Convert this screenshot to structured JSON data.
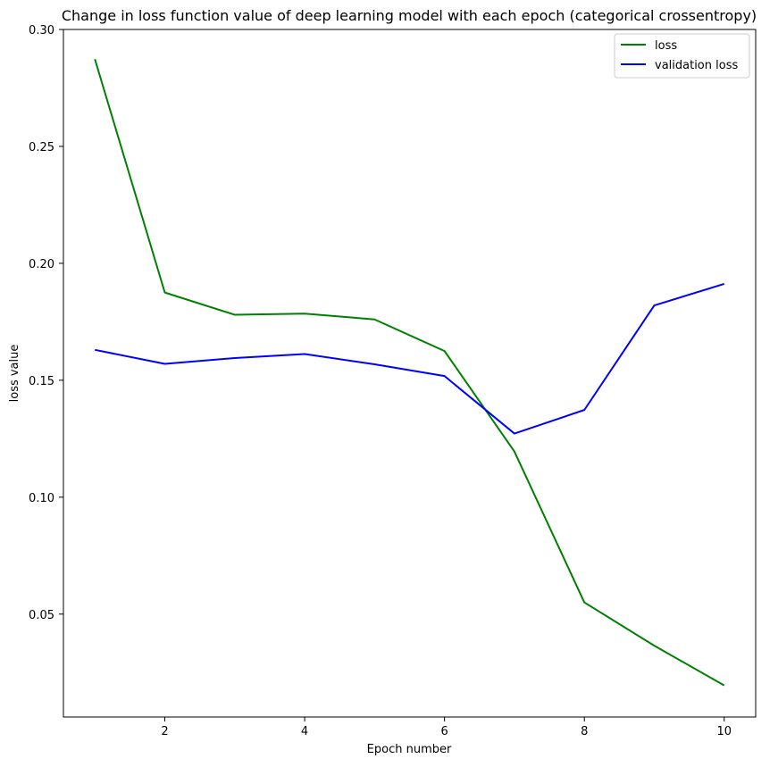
{
  "chart_data": {
    "type": "line",
    "title": "Change in loss function value of deep learning model with each epoch (categorical crossentropy)",
    "xlabel": "Epoch number",
    "ylabel": "loss value",
    "x": [
      1,
      2,
      3,
      4,
      5,
      6,
      7,
      8,
      9,
      10
    ],
    "xlim": [
      0.55,
      10.45
    ],
    "ylim": [
      0.006,
      0.3
    ],
    "xticks": [
      2,
      4,
      6,
      8,
      10
    ],
    "xtick_labels": [
      "2",
      "4",
      "6",
      "8",
      "10"
    ],
    "yticks": [
      0.05,
      0.1,
      0.15,
      0.2,
      0.25,
      0.3
    ],
    "ytick_labels": [
      "0.05",
      "0.10",
      "0.15",
      "0.20",
      "0.25",
      "0.30"
    ],
    "grid": false,
    "legend_position": "top-right",
    "series": [
      {
        "name": "loss",
        "color": "#008000",
        "values": [
          0.2873,
          0.1875,
          0.178,
          0.1785,
          0.176,
          0.1625,
          0.1195,
          0.055,
          0.0365,
          0.0195
        ]
      },
      {
        "name": "validation loss",
        "color": "#0000ff",
        "values": [
          0.163,
          0.157,
          0.1595,
          0.1612,
          0.1568,
          0.1518,
          0.1272,
          0.1373,
          0.182,
          0.1912
        ]
      }
    ]
  }
}
